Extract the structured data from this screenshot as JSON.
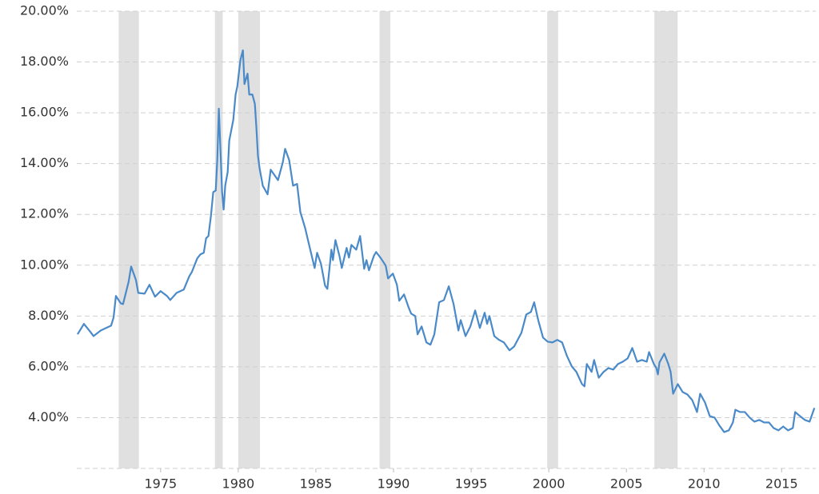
{
  "chart_data": {
    "type": "line",
    "x": [
      1969.65,
      1970.06,
      1970.48,
      1970.68,
      1971.14,
      1971.81,
      1971.97,
      1972.12,
      1972.43,
      1972.58,
      1972.94,
      1973.1,
      1973.41,
      1973.56,
      1973.97,
      1974.28,
      1974.64,
      1975.0,
      1975.41,
      1975.62,
      1976.03,
      1976.49,
      1976.85,
      1977.01,
      1977.36,
      1977.57,
      1977.78,
      1977.93,
      1978.08,
      1978.24,
      1978.39,
      1978.55,
      1978.65,
      1978.75,
      1978.86,
      1978.96,
      1979.06,
      1979.16,
      1979.32,
      1979.42,
      1979.68,
      1979.83,
      1979.94,
      1980.14,
      1980.3,
      1980.4,
      1980.6,
      1980.71,
      1980.91,
      1981.07,
      1981.17,
      1981.27,
      1981.37,
      1981.58,
      1981.89,
      1982.09,
      1982.56,
      1982.87,
      1983.02,
      1983.28,
      1983.53,
      1983.79,
      1984.0,
      1984.31,
      1984.61,
      1984.92,
      1985.08,
      1985.33,
      1985.59,
      1985.74,
      1986.0,
      1986.1,
      1986.26,
      1986.52,
      1986.67,
      1986.98,
      1987.13,
      1987.29,
      1987.6,
      1987.85,
      1988.11,
      1988.26,
      1988.42,
      1988.73,
      1988.88,
      1989.19,
      1989.5,
      1989.65,
      1989.96,
      1990.22,
      1990.37,
      1990.68,
      1990.99,
      1991.14,
      1991.4,
      1991.55,
      1991.81,
      1992.12,
      1992.38,
      1992.63,
      1992.94,
      1993.25,
      1993.56,
      1993.87,
      1994.18,
      1994.33,
      1994.64,
      1994.95,
      1995.26,
      1995.56,
      1995.87,
      1996.03,
      1996.18,
      1996.49,
      1996.8,
      1997.11,
      1997.47,
      1997.77,
      1998.24,
      1998.55,
      1998.85,
      1999.06,
      1999.32,
      1999.63,
      1999.93,
      2000.24,
      2000.55,
      2000.86,
      2001.17,
      2001.48,
      2001.78,
      2002.14,
      2002.3,
      2002.45,
      2002.76,
      2002.92,
      2003.22,
      2003.53,
      2003.84,
      2004.15,
      2004.46,
      2004.77,
      2005.08,
      2005.38,
      2005.69,
      2006.0,
      2006.31,
      2006.46,
      2006.77,
      2006.93,
      2007.03,
      2007.13,
      2007.44,
      2007.7,
      2007.85,
      2008.01,
      2008.31,
      2008.62,
      2008.93,
      2009.24,
      2009.55,
      2009.75,
      2010.06,
      2010.37,
      2010.68,
      2010.99,
      2011.3,
      2011.6,
      2011.86,
      2012.02,
      2012.32,
      2012.63,
      2012.94,
      2013.25,
      2013.56,
      2013.87,
      2014.18,
      2014.48,
      2014.8,
      2015.1,
      2015.41,
      2015.72,
      2015.87,
      2016.18,
      2016.49,
      2016.8,
      2017.11
    ],
    "values": [
      7.28,
      7.69,
      7.37,
      7.21,
      7.43,
      7.62,
      7.94,
      8.79,
      8.5,
      8.47,
      9.35,
      9.95,
      9.42,
      8.91,
      8.88,
      9.23,
      8.76,
      8.98,
      8.79,
      8.63,
      8.91,
      9.04,
      9.57,
      9.73,
      10.27,
      10.43,
      10.49,
      11.06,
      11.15,
      11.94,
      12.88,
      12.94,
      14.14,
      16.16,
      14.46,
      12.88,
      12.19,
      13.13,
      13.67,
      14.9,
      15.72,
      16.72,
      17.04,
      18.08,
      18.46,
      17.13,
      17.54,
      16.72,
      16.72,
      16.35,
      15.4,
      14.3,
      13.83,
      13.13,
      12.79,
      13.76,
      13.35,
      14.05,
      14.58,
      14.14,
      13.13,
      13.2,
      12.09,
      11.46,
      10.68,
      9.89,
      10.49,
      10.05,
      9.2,
      9.07,
      10.61,
      10.2,
      10.99,
      10.36,
      9.89,
      10.68,
      10.3,
      10.8,
      10.61,
      11.15,
      9.86,
      10.2,
      9.8,
      10.36,
      10.52,
      10.27,
      9.98,
      9.48,
      9.67,
      9.23,
      8.6,
      8.85,
      8.31,
      8.09,
      8.0,
      7.28,
      7.59,
      6.96,
      6.87,
      7.28,
      8.54,
      8.63,
      9.17,
      8.47,
      7.43,
      7.84,
      7.21,
      7.59,
      8.22,
      7.53,
      8.13,
      7.69,
      8.0,
      7.21,
      7.06,
      6.96,
      6.65,
      6.8,
      7.34,
      8.06,
      8.16,
      8.54,
      7.84,
      7.15,
      6.99,
      6.96,
      7.06,
      6.96,
      6.43,
      6.02,
      5.8,
      5.32,
      5.23,
      6.11,
      5.8,
      6.27,
      5.57,
      5.8,
      5.95,
      5.89,
      6.11,
      6.2,
      6.33,
      6.74,
      6.2,
      6.27,
      6.2,
      6.58,
      6.11,
      5.95,
      5.7,
      6.17,
      6.52,
      6.11,
      5.8,
      4.94,
      5.32,
      5.01,
      4.91,
      4.69,
      4.22,
      4.94,
      4.6,
      4.06,
      4.0,
      3.69,
      3.43,
      3.5,
      3.81,
      4.31,
      4.22,
      4.22,
      4.0,
      3.84,
      3.91,
      3.81,
      3.81,
      3.59,
      3.5,
      3.65,
      3.5,
      3.59,
      4.22,
      4.06,
      3.91,
      3.84,
      4.38
    ],
    "color": "#4a8ac9",
    "recessions": [
      [
        1972.3,
        1973.6
      ],
      [
        1978.5,
        1979.0
      ],
      [
        1980.0,
        1981.4
      ],
      [
        1989.1,
        1989.8
      ],
      [
        1999.9,
        2000.6
      ],
      [
        2006.8,
        2008.3
      ]
    ],
    "recession_color": "#e0e0e0",
    "xlim": [
      1969.6,
      2017.2
    ],
    "xticks": [
      1975,
      1980,
      1985,
      1990,
      1995,
      2000,
      2005,
      2010,
      2015
    ],
    "ylim": [
      2,
      20
    ],
    "yticks": [
      {
        "value": 4,
        "label": "4.00%"
      },
      {
        "value": 6,
        "label": "6.00%"
      },
      {
        "value": 8,
        "label": "8.00%"
      },
      {
        "value": 10,
        "label": "10.00%"
      },
      {
        "value": 12,
        "label": "12.00%"
      },
      {
        "value": 14,
        "label": "14.00%"
      },
      {
        "value": 16,
        "label": "16.00%"
      },
      {
        "value": 18,
        "label": "18.00%"
      },
      {
        "value": 20,
        "label": "20.00%"
      }
    ],
    "grid": true
  }
}
